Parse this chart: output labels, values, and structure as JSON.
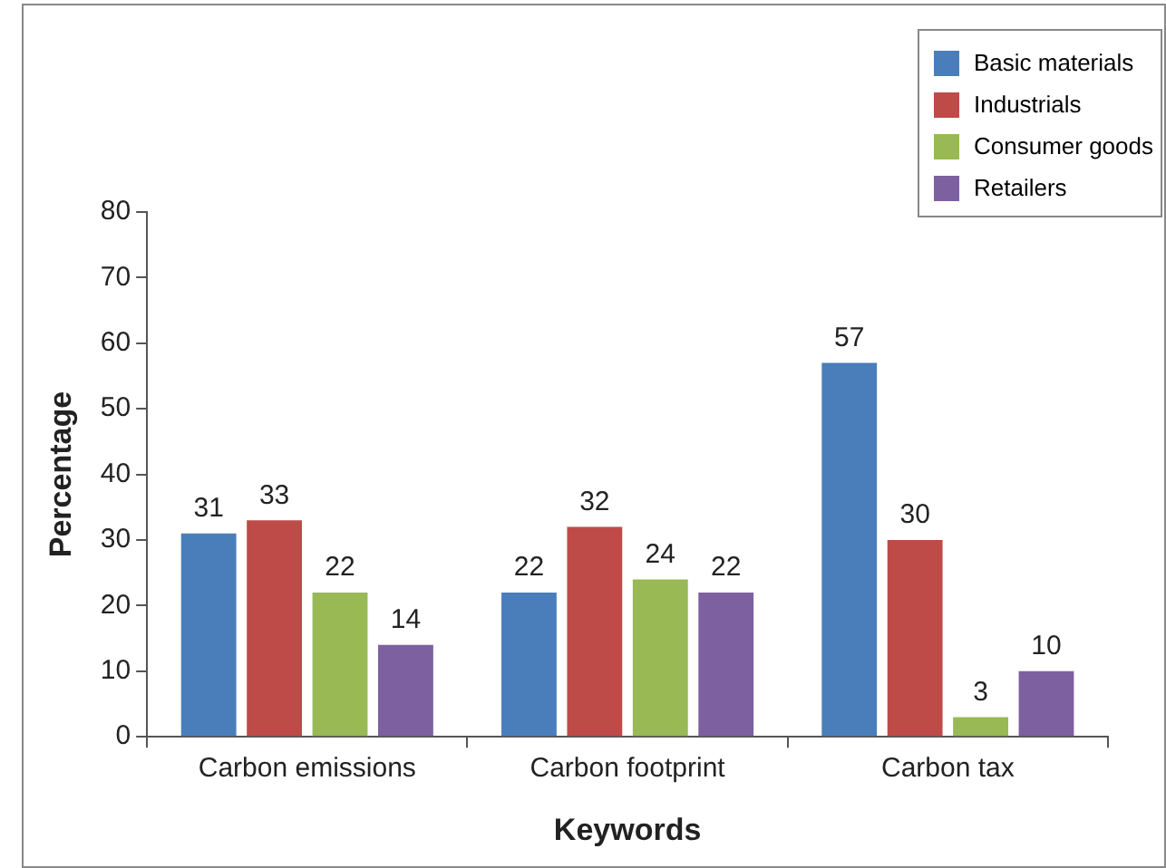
{
  "chart_data": {
    "type": "bar",
    "xlabel": "Keywords",
    "ylabel": "Percentage",
    "categories": [
      "Carbon emissions",
      "Carbon footprint",
      "Carbon tax"
    ],
    "series": [
      {
        "name": "Basic materials",
        "color": "#4a7ebb",
        "values": [
          31,
          22,
          57
        ]
      },
      {
        "name": "Industrials",
        "color": "#be4b48",
        "values": [
          33,
          32,
          30
        ]
      },
      {
        "name": "Consumer goods",
        "color": "#98b954",
        "values": [
          22,
          24,
          3
        ]
      },
      {
        "name": "Retailers",
        "color": "#7d60a0",
        "values": [
          14,
          22,
          10
        ]
      }
    ],
    "ylim": [
      0,
      80
    ],
    "yticks": [
      0,
      10,
      20,
      30,
      40,
      50,
      60,
      70,
      80
    ],
    "grid": false,
    "legend": "top right",
    "data_labels": true
  }
}
